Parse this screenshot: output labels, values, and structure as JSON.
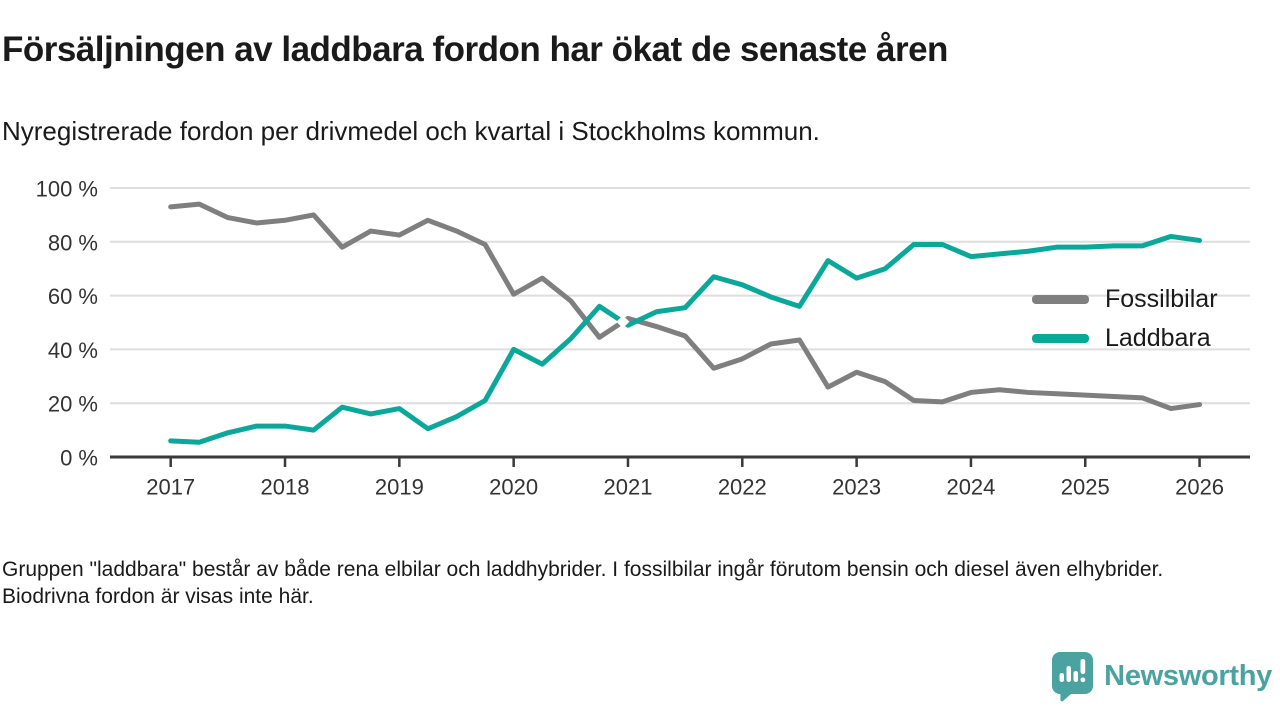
{
  "title": "Försäljningen av laddbara fordon har ökat de senaste åren",
  "subtitle": "Nyregistrerade fordon per drivmedel och kvartal i Stockholms kommun.",
  "footer": {
    "note": "Gruppen \"laddbara\" består av både rena elbilar och laddhybrider. I fossilbilar ingår förutom bensin och diesel även elhybrider. Biodrivna fordon är visas inte här."
  },
  "logo": {
    "name": "Newsworthy",
    "color": "#4aa3a0"
  },
  "colors": {
    "text": "#1a1a1a",
    "axis": "#3a3a3a",
    "axis_label": "#333333",
    "gridline": "#dedede",
    "fossil": "#7f7f7f",
    "laddbara": "#0ba79a",
    "crossover_marker_fill": "#ffffff"
  },
  "chart_data": {
    "type": "line",
    "frequency": "quarterly",
    "start_quarter": "2017-Q1",
    "end_quarter": "2026-Q1",
    "ylim": [
      0,
      100
    ],
    "grid": "horizontal",
    "legend_position": "right",
    "y_ticks": [
      {
        "label": "0 %",
        "value": 0
      },
      {
        "label": "20 %",
        "value": 20
      },
      {
        "label": "40 %",
        "value": 40
      },
      {
        "label": "60 %",
        "value": 60
      },
      {
        "label": "80 %",
        "value": 80
      },
      {
        "label": "100 %",
        "value": 100
      }
    ],
    "x_ticks": [
      {
        "label": "2017",
        "quarter_index": 0
      },
      {
        "label": "2018",
        "quarter_index": 4
      },
      {
        "label": "2019",
        "quarter_index": 8
      },
      {
        "label": "2020",
        "quarter_index": 12
      },
      {
        "label": "2021",
        "quarter_index": 16
      },
      {
        "label": "2022",
        "quarter_index": 20
      },
      {
        "label": "2023",
        "quarter_index": 24
      },
      {
        "label": "2024",
        "quarter_index": 28
      },
      {
        "label": "2025",
        "quarter_index": 32
      },
      {
        "label": "2026",
        "quarter_index": 36
      }
    ],
    "series": [
      {
        "name": "Fossilbilar",
        "color": "#7f7f7f",
        "values": [
          93,
          94,
          89,
          87,
          88,
          90,
          78,
          84,
          82.5,
          88,
          84,
          79,
          60.5,
          66.5,
          58,
          44.5,
          51.5,
          48.5,
          45,
          33,
          36.5,
          42,
          43.5,
          26,
          31.5,
          28,
          21,
          20.5,
          24,
          25,
          24,
          23.5,
          23,
          22.5,
          22,
          18,
          19.5
        ]
      },
      {
        "name": "Laddbara",
        "color": "#0ba79a",
        "values": [
          6,
          5.5,
          9,
          11.5,
          11.5,
          10,
          18.5,
          16,
          18,
          10.5,
          15,
          21,
          40,
          34.5,
          44,
          56,
          49,
          54,
          55.5,
          67,
          64,
          59.5,
          56,
          73,
          66.5,
          70,
          79,
          79,
          74.5,
          75.5,
          76.5,
          78,
          78,
          78.5,
          78.5,
          82,
          80.5
        ]
      }
    ],
    "crossover_marker": {
      "x_index": 15.82,
      "value": 50.3
    }
  }
}
